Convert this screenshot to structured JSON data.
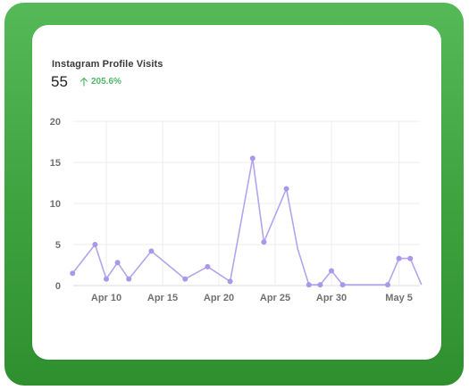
{
  "widget": {
    "title": "Instagram Profile Visits",
    "total": "55",
    "change": "205.6%",
    "change_icon": "arrow-up-icon"
  },
  "colors": {
    "frame": "#3da23e",
    "line": "#b3a4ee",
    "point": "#a897ea",
    "positive": "#52b56a",
    "grid": "#ececec"
  },
  "chart_data": {
    "type": "line",
    "title": "",
    "xlabel": "",
    "ylabel": "",
    "ylim": [
      0,
      20
    ],
    "y_ticks": [
      "0",
      "5",
      "10",
      "15",
      "20"
    ],
    "x_ticks": [
      "Apr 10",
      "Apr 15",
      "Apr 20",
      "Apr 25",
      "Apr 30",
      "May 5"
    ],
    "grid": true,
    "series": [
      {
        "x": [
          "Apr 7",
          "Apr 9",
          "Apr 10",
          "Apr 11",
          "Apr 12",
          "Apr 14",
          "Apr 17",
          "Apr 19",
          "Apr 21",
          "Apr 23",
          "Apr 24",
          "Apr 26",
          "Apr 27",
          "Apr 28",
          "Apr 29",
          "Apr 30",
          "Apr 31",
          "May 2",
          "May 4",
          "May 5",
          "May 6",
          "May 7"
        ],
        "values": [
          1.5,
          5,
          0.8,
          2.8,
          0.8,
          4.2,
          0.8,
          2.3,
          0.5,
          15.5,
          5.3,
          11.8,
          4.5,
          0.1,
          0.1,
          1.8,
          0.1,
          0.1,
          0.1,
          3.3,
          3.3,
          0.1
        ],
        "markers": [
          true,
          true,
          true,
          true,
          true,
          true,
          true,
          true,
          true,
          true,
          true,
          true,
          false,
          true,
          true,
          true,
          true,
          false,
          true,
          true,
          true,
          false
        ]
      }
    ]
  }
}
